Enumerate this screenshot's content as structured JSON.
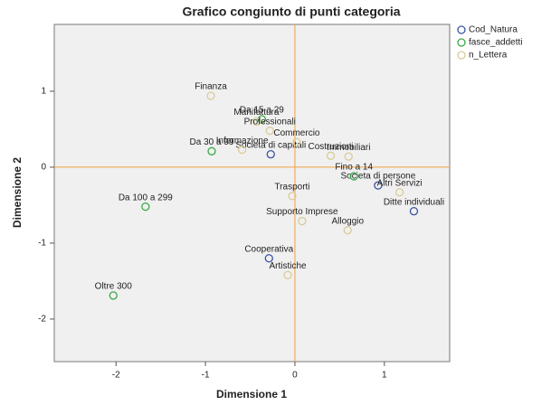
{
  "chart_data": {
    "type": "scatter",
    "title": "Grafico congiunto di punti categoria",
    "x_label": "Dimensione 1",
    "y_label": "Dimensione 2",
    "xlim": [
      -2.69,
      1.73
    ],
    "ylim": [
      -2.56,
      1.88
    ],
    "xticks": [
      -2,
      -1,
      0,
      1
    ],
    "yticks": [
      -2,
      -1,
      0,
      1
    ],
    "grid": false,
    "reference_lines": {
      "x": 0,
      "y": 0,
      "color": "#f0a040"
    },
    "legend": "top-right",
    "series": [
      {
        "name": "Cod_Natura",
        "color": "#3953a4",
        "labels": [
          "Societa di capitali",
          "Societa di persone",
          "Ditte individuali",
          "Cooperativa"
        ],
        "x": [
          -0.27,
          0.93,
          1.33,
          -0.29
        ],
        "values": [
          0.17,
          -0.24,
          -0.58,
          -1.2
        ]
      },
      {
        "name": "fasce_addetti",
        "color": "#3aa844",
        "labels": [
          "Fino a 14",
          "Da 15 a 29",
          "Da 30 a 99",
          "Da 100 a 299",
          "Oltre 300"
        ],
        "x": [
          0.66,
          -0.37,
          -0.93,
          -1.67,
          -2.03
        ],
        "values": [
          -0.12,
          0.63,
          0.21,
          -0.52,
          -1.69
        ]
      },
      {
        "name": "n_Lettera",
        "color": "#d9cb98",
        "labels": [
          "Finanza",
          "Manifattura",
          "Professionali",
          "Informazione",
          "Commercio",
          "Immobiliari",
          "Costruzioni",
          "Trasporti",
          "Altri Servizi",
          "Alloggio",
          "Supporto Imprese",
          "Artistiche"
        ],
        "x": [
          -0.94,
          -0.43,
          -0.28,
          -0.59,
          0.02,
          0.6,
          0.4,
          -0.03,
          1.17,
          0.59,
          0.08,
          -0.08
        ],
        "values": [
          0.94,
          0.6,
          0.48,
          0.23,
          0.33,
          0.14,
          0.15,
          -0.38,
          -0.33,
          -0.83,
          -0.71,
          -1.42
        ]
      }
    ]
  }
}
